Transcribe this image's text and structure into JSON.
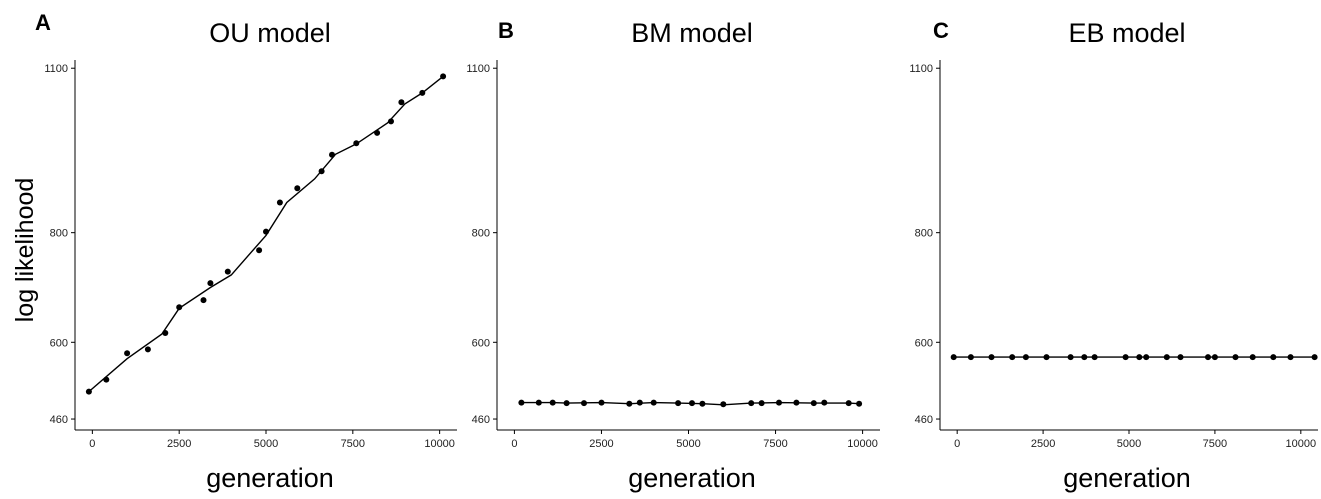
{
  "chart_data": [
    {
      "type": "scatter",
      "panel_letter": "A",
      "title": "OU model",
      "xlabel": "generation",
      "ylabel": "log likelihood",
      "xlim": [
        -500,
        10500
      ],
      "ylim": [
        440,
        1115
      ],
      "xticks": [
        0,
        2500,
        5000,
        7500,
        10000
      ],
      "yticks": [
        460,
        600,
        800,
        1100
      ],
      "grid": false,
      "points": [
        {
          "x": -100,
          "y": 510
        },
        {
          "x": 400,
          "y": 532
        },
        {
          "x": 1000,
          "y": 580
        },
        {
          "x": 1600,
          "y": 587
        },
        {
          "x": 2100,
          "y": 617
        },
        {
          "x": 2500,
          "y": 664
        },
        {
          "x": 3200,
          "y": 677
        },
        {
          "x": 3400,
          "y": 708
        },
        {
          "x": 3900,
          "y": 729
        },
        {
          "x": 4800,
          "y": 768
        },
        {
          "x": 5000,
          "y": 802
        },
        {
          "x": 5400,
          "y": 855
        },
        {
          "x": 5900,
          "y": 881
        },
        {
          "x": 6600,
          "y": 912
        },
        {
          "x": 6900,
          "y": 942
        },
        {
          "x": 7600,
          "y": 963
        },
        {
          "x": 8200,
          "y": 982
        },
        {
          "x": 8600,
          "y": 1003
        },
        {
          "x": 8900,
          "y": 1038
        },
        {
          "x": 9500,
          "y": 1055
        },
        {
          "x": 10100,
          "y": 1085
        }
      ],
      "trend": [
        {
          "x": -100,
          "y": 510
        },
        {
          "x": 1000,
          "y": 570
        },
        {
          "x": 2000,
          "y": 615
        },
        {
          "x": 2500,
          "y": 662
        },
        {
          "x": 3400,
          "y": 700
        },
        {
          "x": 4000,
          "y": 723
        },
        {
          "x": 5000,
          "y": 795
        },
        {
          "x": 5600,
          "y": 855
        },
        {
          "x": 6400,
          "y": 898
        },
        {
          "x": 7000,
          "y": 943
        },
        {
          "x": 7600,
          "y": 962
        },
        {
          "x": 8500,
          "y": 1000
        },
        {
          "x": 9000,
          "y": 1035
        },
        {
          "x": 9500,
          "y": 1055
        },
        {
          "x": 10100,
          "y": 1085
        }
      ]
    },
    {
      "type": "scatter",
      "panel_letter": "B",
      "title": "BM model",
      "xlabel": "generation",
      "ylabel": "",
      "xlim": [
        -500,
        10500
      ],
      "ylim": [
        440,
        1115
      ],
      "xticks": [
        0,
        2500,
        5000,
        7500,
        10000
      ],
      "yticks": [
        460,
        600,
        800,
        1100
      ],
      "grid": false,
      "points": [
        {
          "x": 200,
          "y": 490
        },
        {
          "x": 700,
          "y": 490
        },
        {
          "x": 1100,
          "y": 490
        },
        {
          "x": 1500,
          "y": 489
        },
        {
          "x": 2000,
          "y": 489
        },
        {
          "x": 2500,
          "y": 490
        },
        {
          "x": 3300,
          "y": 488
        },
        {
          "x": 3600,
          "y": 490
        },
        {
          "x": 4000,
          "y": 490
        },
        {
          "x": 4700,
          "y": 489
        },
        {
          "x": 5100,
          "y": 489
        },
        {
          "x": 5400,
          "y": 488
        },
        {
          "x": 6000,
          "y": 487
        },
        {
          "x": 6800,
          "y": 489
        },
        {
          "x": 7100,
          "y": 489
        },
        {
          "x": 7600,
          "y": 490
        },
        {
          "x": 8100,
          "y": 490
        },
        {
          "x": 8600,
          "y": 489
        },
        {
          "x": 8900,
          "y": 490
        },
        {
          "x": 9600,
          "y": 489
        },
        {
          "x": 9900,
          "y": 488
        }
      ],
      "trend": [
        {
          "x": 200,
          "y": 490
        },
        {
          "x": 1100,
          "y": 490
        },
        {
          "x": 1500,
          "y": 489
        },
        {
          "x": 2500,
          "y": 490
        },
        {
          "x": 3300,
          "y": 488
        },
        {
          "x": 4000,
          "y": 490
        },
        {
          "x": 4700,
          "y": 489
        },
        {
          "x": 5400,
          "y": 488
        },
        {
          "x": 6000,
          "y": 486
        },
        {
          "x": 6800,
          "y": 489
        },
        {
          "x": 7600,
          "y": 490
        },
        {
          "x": 8600,
          "y": 489
        },
        {
          "x": 9600,
          "y": 489
        },
        {
          "x": 9900,
          "y": 488
        }
      ]
    },
    {
      "type": "scatter",
      "panel_letter": "C",
      "title": "EB model",
      "xlabel": "generation",
      "ylabel": "",
      "xlim": [
        -500,
        10500
      ],
      "ylim": [
        440,
        1115
      ],
      "xticks": [
        0,
        2500,
        5000,
        7500,
        10000
      ],
      "yticks": [
        460,
        600,
        800,
        1100
      ],
      "grid": false,
      "points": [
        {
          "x": -100,
          "y": 573
        },
        {
          "x": 400,
          "y": 573
        },
        {
          "x": 1000,
          "y": 573
        },
        {
          "x": 1600,
          "y": 573
        },
        {
          "x": 2000,
          "y": 573
        },
        {
          "x": 2600,
          "y": 573
        },
        {
          "x": 3300,
          "y": 573
        },
        {
          "x": 3700,
          "y": 573
        },
        {
          "x": 4000,
          "y": 573
        },
        {
          "x": 4900,
          "y": 573
        },
        {
          "x": 5300,
          "y": 573
        },
        {
          "x": 5500,
          "y": 573
        },
        {
          "x": 6100,
          "y": 573
        },
        {
          "x": 6500,
          "y": 573
        },
        {
          "x": 7300,
          "y": 573
        },
        {
          "x": 7500,
          "y": 573
        },
        {
          "x": 8100,
          "y": 573
        },
        {
          "x": 8600,
          "y": 573
        },
        {
          "x": 9200,
          "y": 573
        },
        {
          "x": 9700,
          "y": 573
        },
        {
          "x": 10400,
          "y": 573
        }
      ],
      "trend": [
        {
          "x": -100,
          "y": 573
        },
        {
          "x": 10400,
          "y": 573
        }
      ]
    }
  ]
}
